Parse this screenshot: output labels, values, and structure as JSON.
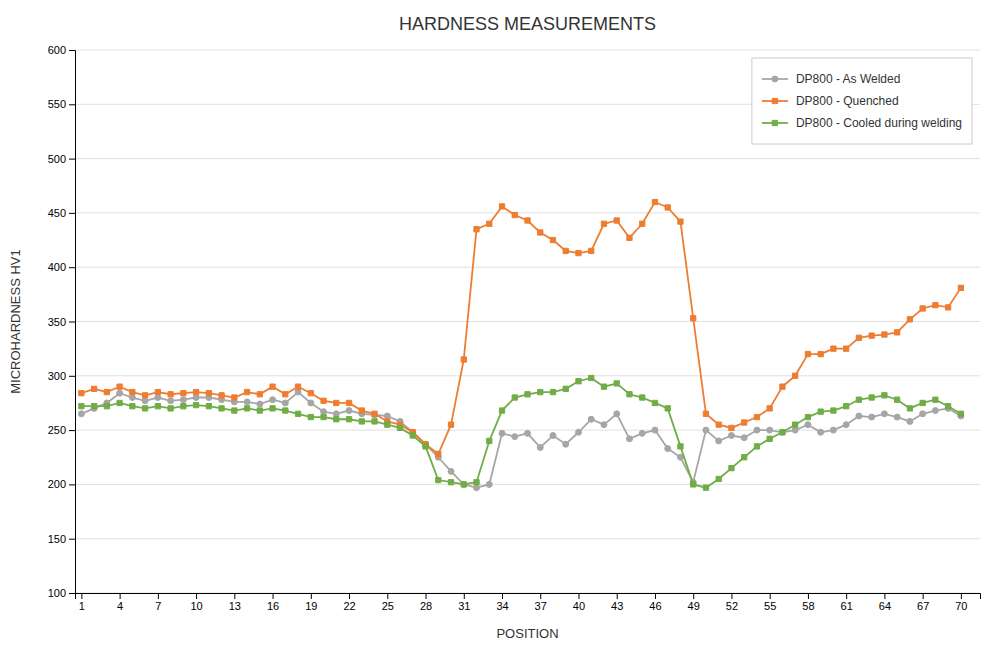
{
  "chart_data": {
    "type": "line",
    "title": "HARDNESS MEASUREMENTS",
    "xlabel": "POSITION",
    "ylabel": "MICROHARDNESS HV1",
    "x": [
      1,
      2,
      3,
      4,
      5,
      6,
      7,
      8,
      9,
      10,
      11,
      12,
      13,
      14,
      15,
      16,
      17,
      18,
      19,
      20,
      21,
      22,
      23,
      24,
      25,
      26,
      27,
      28,
      29,
      30,
      31,
      32,
      33,
      34,
      35,
      36,
      37,
      38,
      39,
      40,
      41,
      42,
      43,
      44,
      45,
      46,
      47,
      48,
      49,
      50,
      51,
      52,
      53,
      54,
      55,
      56,
      57,
      58,
      59,
      60,
      61,
      62,
      63,
      64,
      65,
      66,
      67,
      68,
      69,
      70
    ],
    "xlim": [
      0.5,
      71.5
    ],
    "xticks": [
      1,
      4,
      7,
      10,
      13,
      16,
      19,
      22,
      25,
      28,
      31,
      34,
      37,
      40,
      43,
      46,
      49,
      52,
      55,
      58,
      61,
      64,
      67,
      70
    ],
    "ylim": [
      100,
      600
    ],
    "yticks": [
      100,
      150,
      200,
      250,
      300,
      350,
      400,
      450,
      500,
      550,
      600
    ],
    "grid": "y",
    "legend": "upper right",
    "series": [
      {
        "name": "DP800 - As Welded",
        "color": "#a6a6a6",
        "marker": "circle",
        "values": [
          265,
          270,
          275,
          284,
          280,
          277,
          280,
          277,
          278,
          280,
          280,
          278,
          276,
          276,
          274,
          278,
          275,
          285,
          275,
          267,
          265,
          268,
          265,
          264,
          263,
          258,
          248,
          237,
          225,
          212,
          200,
          197,
          200,
          247,
          244,
          247,
          234,
          245,
          237,
          248,
          260,
          255,
          265,
          242,
          247,
          250,
          233,
          225,
          202,
          250,
          240,
          245,
          243,
          250,
          250,
          248,
          250,
          255,
          248,
          250,
          255,
          263,
          262,
          265,
          262,
          258,
          265,
          268,
          270,
          263
        ]
      },
      {
        "name": "DP800 - Quenched",
        "color": "#ed7d31",
        "marker": "square",
        "values": [
          284,
          288,
          285,
          290,
          285,
          282,
          285,
          283,
          284,
          285,
          284,
          282,
          280,
          285,
          283,
          290,
          283,
          290,
          284,
          277,
          275,
          275,
          268,
          265,
          258,
          255,
          248,
          237,
          228,
          255,
          315,
          435,
          440,
          456,
          448,
          443,
          432,
          425,
          415,
          413,
          415,
          440,
          443,
          427,
          440,
          460,
          455,
          442,
          353,
          265,
          255,
          252,
          257,
          262,
          270,
          290,
          300,
          320,
          320,
          325,
          325,
          335,
          337,
          338,
          340,
          352,
          362,
          365,
          363,
          381
        ]
      },
      {
        "name": "DP800 - Cooled during welding",
        "color": "#70ad47",
        "marker": "square",
        "values": [
          272,
          272,
          272,
          275,
          272,
          270,
          272,
          270,
          272,
          273,
          272,
          270,
          268,
          270,
          268,
          270,
          268,
          265,
          262,
          262,
          260,
          260,
          258,
          258,
          255,
          252,
          245,
          235,
          204,
          202,
          200,
          202,
          240,
          268,
          280,
          283,
          285,
          285,
          288,
          295,
          298,
          290,
          293,
          283,
          280,
          275,
          270,
          235,
          200,
          197,
          205,
          215,
          225,
          235,
          242,
          248,
          255,
          262,
          267,
          268,
          272,
          278,
          280,
          282,
          278,
          270,
          275,
          278,
          272,
          265
        ]
      }
    ]
  }
}
